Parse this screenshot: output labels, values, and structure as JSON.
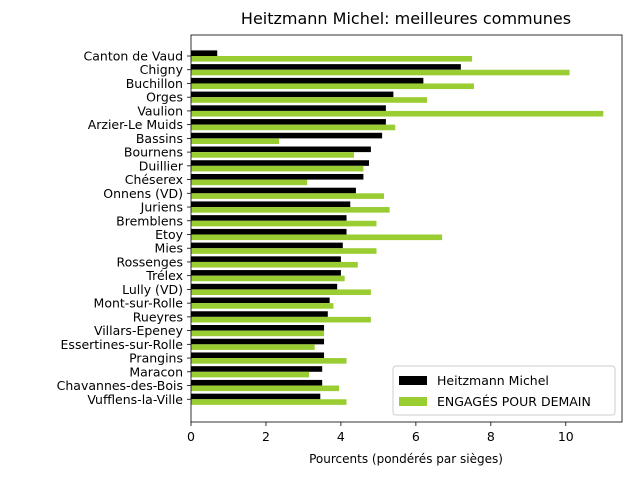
{
  "chart_data": {
    "type": "bar",
    "orientation": "horizontal",
    "title": "Heitzmann Michel: meilleures communes",
    "xlabel": "Pourcents (pondérés par sièges)",
    "ylabel": "",
    "xlim": [
      0,
      11.5
    ],
    "xticks": [
      0,
      2,
      4,
      6,
      8,
      10
    ],
    "grid": false,
    "legend_position": "bottom-right",
    "categories": [
      "Canton de Vaud",
      "Chigny",
      "Buchillon",
      "Orges",
      "Vaulion",
      "Arzier-Le Muids",
      "Bassins",
      "Bournens",
      "Duillier",
      "Chéserex",
      "Onnens (VD)",
      "Juriens",
      "Bremblens",
      "Etoy",
      "Mies",
      "Rossenges",
      "Trélex",
      "Lully (VD)",
      "Mont-sur-Rolle",
      "Rueyres",
      "Villars-Epeney",
      "Essertines-sur-Rolle",
      "Prangins",
      "Maracon",
      "Chavannes-des-Bois",
      "Vufflens-la-Ville"
    ],
    "series": [
      {
        "name": "Heitzmann Michel",
        "color": "#000000",
        "values": [
          0.7,
          7.2,
          6.2,
          5.4,
          5.2,
          5.2,
          5.1,
          4.8,
          4.75,
          4.6,
          4.4,
          4.25,
          4.15,
          4.15,
          4.05,
          4.0,
          4.0,
          3.9,
          3.7,
          3.65,
          3.55,
          3.55,
          3.55,
          3.5,
          3.5,
          3.45
        ]
      },
      {
        "name": "ENGAGÉS POUR DEMAIN",
        "color": "#9acd32",
        "values": [
          7.5,
          10.1,
          7.55,
          6.3,
          11.0,
          5.45,
          2.35,
          4.35,
          4.6,
          3.1,
          5.15,
          5.3,
          4.95,
          6.7,
          4.95,
          4.45,
          4.1,
          4.8,
          3.8,
          4.8,
          3.55,
          3.3,
          4.15,
          3.15,
          3.95,
          4.15
        ]
      }
    ]
  }
}
